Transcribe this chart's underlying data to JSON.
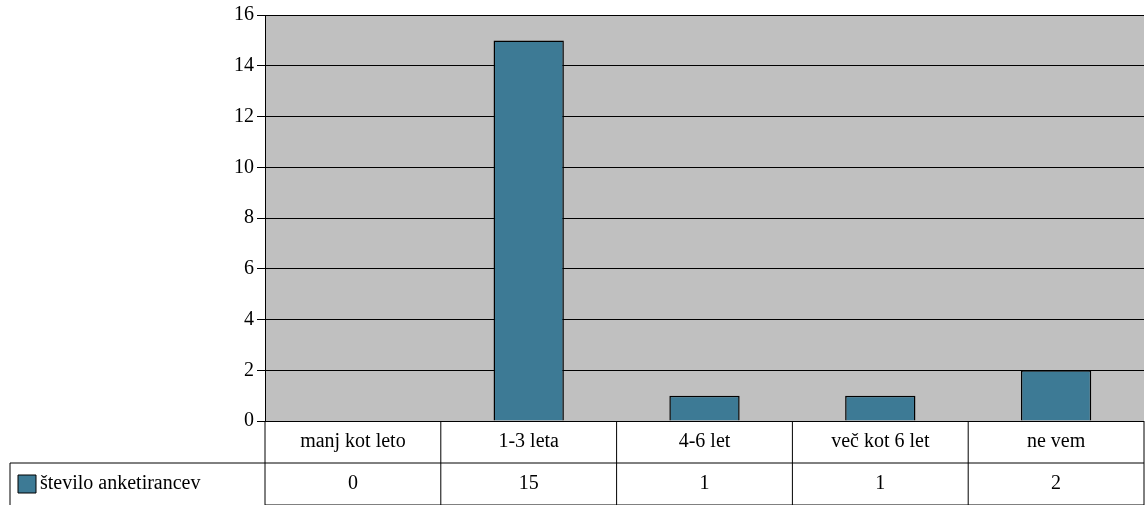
{
  "chart_data": {
    "type": "bar",
    "categories": [
      "manj kot leto",
      "1-3 leta",
      "4-6 let",
      "več kot 6 let",
      "ne vem"
    ],
    "series": [
      {
        "name": "število anketirancev",
        "color": "#3d7a95",
        "values": [
          0,
          15,
          1,
          1,
          2
        ]
      }
    ],
    "ylim": [
      0,
      16
    ],
    "yticks": [
      0,
      2,
      4,
      6,
      8,
      10,
      12,
      14,
      16
    ],
    "grid": "y",
    "legend": "bottom left",
    "data_labels": true
  }
}
